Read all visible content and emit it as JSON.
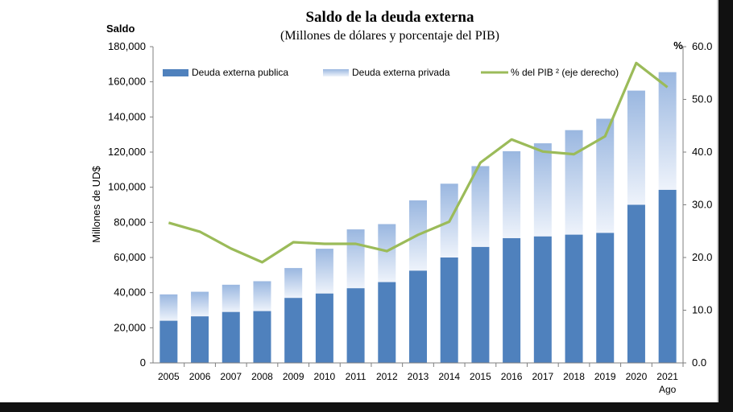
{
  "chart_data": {
    "type": "bar",
    "title": "Saldo de la deuda externa",
    "subtitle": "(Millones  de dólares y porcentaje del PIB)",
    "y_left_title": "Saldo",
    "ylabel": "Millones de UD$",
    "y_right_title": "%",
    "categories": [
      "2005",
      "2006",
      "2007",
      "2008",
      "2009",
      "2010",
      "2011",
      "2012",
      "2013",
      "2014",
      "2015",
      "2016",
      "2017",
      "2018",
      "2019",
      "2020",
      "2021"
    ],
    "category_sublabels": {
      "2021": "Ago"
    },
    "stacked": true,
    "ylim": [
      0,
      180000
    ],
    "y_ticks": [
      "0",
      "20,000",
      "40,000",
      "60,000",
      "80,000",
      "100,000",
      "120,000",
      "140,000",
      "160,000",
      "180,000"
    ],
    "y2lim": [
      0,
      60
    ],
    "y2_ticks": [
      "0.0",
      "10.0",
      "20.0",
      "30.0",
      "40.0",
      "50.0",
      "60.0"
    ],
    "series": [
      {
        "name": "Deuda externa publica",
        "type": "bar",
        "color": "#4f81bd",
        "values": [
          24000,
          26500,
          29000,
          29500,
          37000,
          39500,
          42500,
          46000,
          52500,
          60000,
          66000,
          71000,
          72000,
          73000,
          74000,
          90000,
          98500
        ]
      },
      {
        "name": "Deuda externa privada",
        "type": "bar",
        "color_top": "#9ab7e0",
        "color_bottom": "#eef3fb",
        "values": [
          15000,
          14000,
          15500,
          17000,
          17000,
          25500,
          33500,
          33000,
          40000,
          42000,
          46000,
          49500,
          53000,
          59500,
          65000,
          65000,
          67000
        ]
      },
      {
        "name": "% del PIB ² (eje derecho)",
        "type": "line",
        "axis": "right",
        "color": "#9bbb59",
        "values": [
          26.6,
          24.9,
          21.7,
          19.1,
          22.9,
          22.6,
          22.6,
          21.2,
          24.3,
          26.8,
          38.0,
          42.4,
          40.1,
          39.6,
          43.0,
          56.9,
          52.3
        ]
      }
    ],
    "legend_placement": "top",
    "grid": false
  }
}
